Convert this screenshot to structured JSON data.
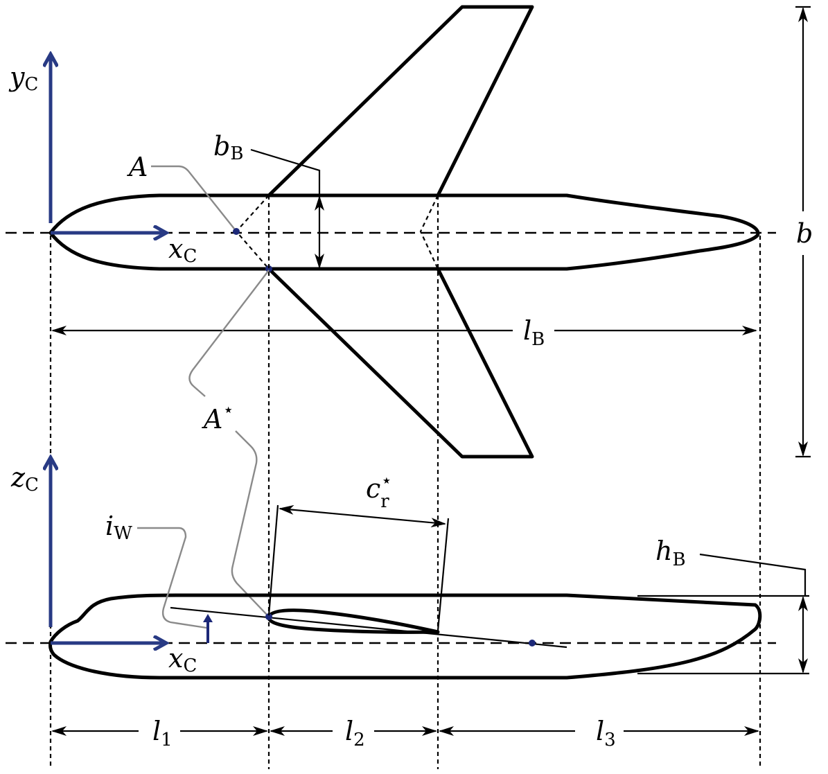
{
  "labels": {
    "yc_main": "y",
    "yc_sub": "C",
    "xc_top_main": "x",
    "xc_top_sub": "C",
    "zc_main": "z",
    "zc_sub": "C",
    "xc_side_main": "x",
    "xc_side_sub": "C",
    "A": "A",
    "A_star": "A",
    "star": "⋆",
    "bB_main": "b",
    "bB_sub": "B",
    "b": "b",
    "lB_main": "l",
    "lB_sub": "B",
    "cr_main": "c",
    "cr_sub": "r",
    "iW_main": "i",
    "iW_sub": "W",
    "hB_main": "h",
    "hB_sub": "B",
    "l1_main": "l",
    "l1_sub": "1",
    "l2_main": "l",
    "l2_sub": "2",
    "l3_main": "l",
    "l3_sub": "3"
  },
  "colors": {
    "axis": "#283a84",
    "point": "#1c2878",
    "leader": "#8a8a8a",
    "outline": "#000000"
  }
}
